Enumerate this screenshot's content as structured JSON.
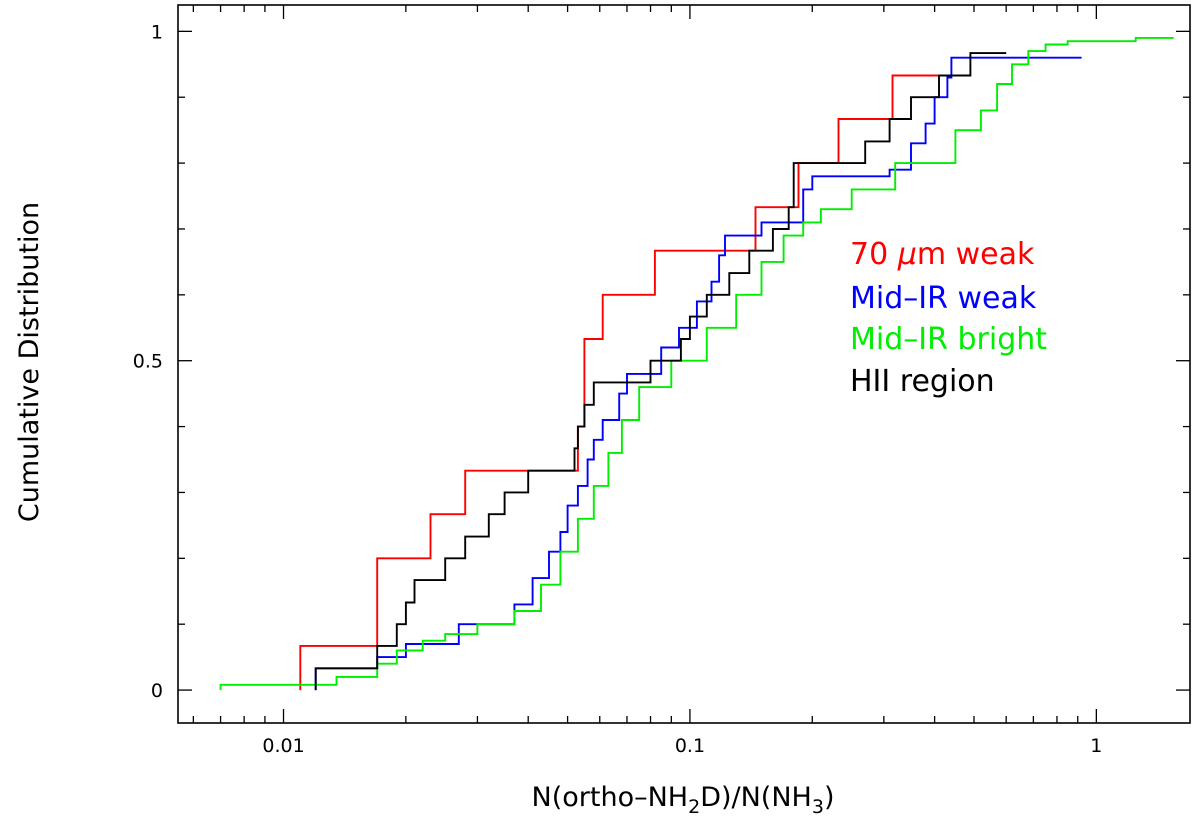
{
  "chart_data": {
    "type": "line",
    "subtype": "cumulative-step",
    "xscale": "log",
    "xlim": [
      0.0055,
      1.7
    ],
    "ylim": [
      -0.05,
      1.04
    ],
    "grid": false,
    "xlabel": "N(ortho-NH2D)/N(NH3)",
    "xlabel_parts": {
      "p1": "N(ortho–NH",
      "s1": "2",
      "p2": "D)/N(NH",
      "s2": "3",
      "p3": ")"
    },
    "ylabel": "Cumulative Distribution",
    "x_ticks": [
      {
        "value": 0.01,
        "label": "0.01"
      },
      {
        "value": 0.1,
        "label": "0.1"
      },
      {
        "value": 1,
        "label": "1"
      }
    ],
    "y_ticks": [
      {
        "value": 0,
        "label": "0"
      },
      {
        "value": 0.5,
        "label": "0.5"
      },
      {
        "value": 1,
        "label": "1"
      }
    ],
    "legend_position": "right-middle",
    "series": [
      {
        "name": "70 μm weak",
        "label_parts": [
          "70 ",
          "μ",
          "m  weak"
        ],
        "color": "#ff0000",
        "x": [
          0.011,
          0.017,
          0.023,
          0.028,
          0.053,
          0.055,
          0.061,
          0.082,
          0.145,
          0.185,
          0.232,
          0.315,
          0.43
        ],
        "y": [
          0.067,
          0.2,
          0.267,
          0.333,
          0.4,
          0.533,
          0.6,
          0.667,
          0.733,
          0.8,
          0.867,
          0.933,
          0.933
        ]
      },
      {
        "name": "Mid–IR weak",
        "label_parts": [
          "Mid–IR  weak"
        ],
        "color": "#0000ff",
        "x": [
          0.012,
          0.017,
          0.02,
          0.027,
          0.037,
          0.041,
          0.045,
          0.048,
          0.05,
          0.053,
          0.056,
          0.058,
          0.061,
          0.064,
          0.067,
          0.07,
          0.076,
          0.085,
          0.094,
          0.104,
          0.113,
          0.118,
          0.122,
          0.128,
          0.15,
          0.19,
          0.2,
          0.31,
          0.35,
          0.38,
          0.4,
          0.43,
          0.44,
          0.92
        ],
        "y": [
          0.033,
          0.05,
          0.07,
          0.1,
          0.13,
          0.17,
          0.21,
          0.24,
          0.28,
          0.31,
          0.35,
          0.38,
          0.41,
          0.41,
          0.45,
          0.48,
          0.48,
          0.52,
          0.55,
          0.59,
          0.62,
          0.66,
          0.69,
          0.69,
          0.71,
          0.76,
          0.78,
          0.79,
          0.83,
          0.86,
          0.9,
          0.93,
          0.96,
          0.96
        ]
      },
      {
        "name": "Mid–IR bright",
        "label_parts": [
          "Mid–IR  bright"
        ],
        "color": "#00ee00",
        "x": [
          0.007,
          0.0135,
          0.017,
          0.019,
          0.022,
          0.025,
          0.03,
          0.037,
          0.043,
          0.048,
          0.053,
          0.058,
          0.063,
          0.068,
          0.075,
          0.09,
          0.11,
          0.13,
          0.15,
          0.17,
          0.19,
          0.21,
          0.25,
          0.32,
          0.45,
          0.52,
          0.57,
          0.62,
          0.68,
          0.75,
          0.85,
          1.25,
          1.55
        ],
        "y": [
          0.008,
          0.02,
          0.04,
          0.06,
          0.075,
          0.085,
          0.1,
          0.12,
          0.16,
          0.21,
          0.26,
          0.31,
          0.36,
          0.41,
          0.46,
          0.5,
          0.55,
          0.6,
          0.65,
          0.69,
          0.71,
          0.73,
          0.76,
          0.8,
          0.85,
          0.88,
          0.92,
          0.95,
          0.97,
          0.98,
          0.985,
          0.99,
          0.99
        ]
      },
      {
        "name": "HII region",
        "label_parts": [
          "HII  region"
        ],
        "color": "#000000",
        "x": [
          0.012,
          0.017,
          0.019,
          0.02,
          0.021,
          0.025,
          0.028,
          0.03,
          0.032,
          0.035,
          0.04,
          0.045,
          0.048,
          0.052,
          0.053,
          0.055,
          0.058,
          0.065,
          0.08,
          0.095,
          0.1,
          0.11,
          0.125,
          0.14,
          0.16,
          0.175,
          0.18,
          0.27,
          0.31,
          0.35,
          0.38,
          0.41,
          0.44,
          0.49,
          0.6
        ],
        "y": [
          0.033,
          0.067,
          0.1,
          0.133,
          0.167,
          0.2,
          0.233,
          0.233,
          0.267,
          0.3,
          0.333,
          0.333,
          0.333,
          0.367,
          0.4,
          0.433,
          0.467,
          0.467,
          0.5,
          0.533,
          0.567,
          0.6,
          0.633,
          0.667,
          0.7,
          0.733,
          0.8,
          0.833,
          0.867,
          0.9,
          0.9,
          0.933,
          0.933,
          0.967,
          0.967
        ]
      }
    ]
  }
}
